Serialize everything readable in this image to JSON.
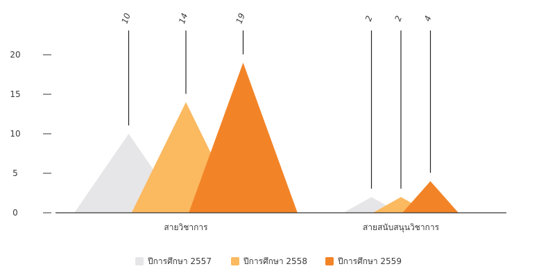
{
  "chart_data": {
    "type": "area",
    "categories": [
      "สายวิชาการ",
      "สายสนับสนุนวิชาการ"
    ],
    "series": [
      {
        "name": "ปีการศึกษา 2557",
        "values": [
          10,
          2
        ],
        "color": "#e6e6e8"
      },
      {
        "name": "ปีการศึกษา 2558",
        "values": [
          14,
          2
        ],
        "color": "#fbb960"
      },
      {
        "name": "ปีการศึกษา 2559",
        "values": [
          19,
          4
        ],
        "color": "#f28427"
      }
    ],
    "y_ticks": [
      0,
      5,
      10,
      15,
      20
    ],
    "ylim": [
      0,
      22
    ],
    "legend_position": "bottom",
    "grid": false
  }
}
